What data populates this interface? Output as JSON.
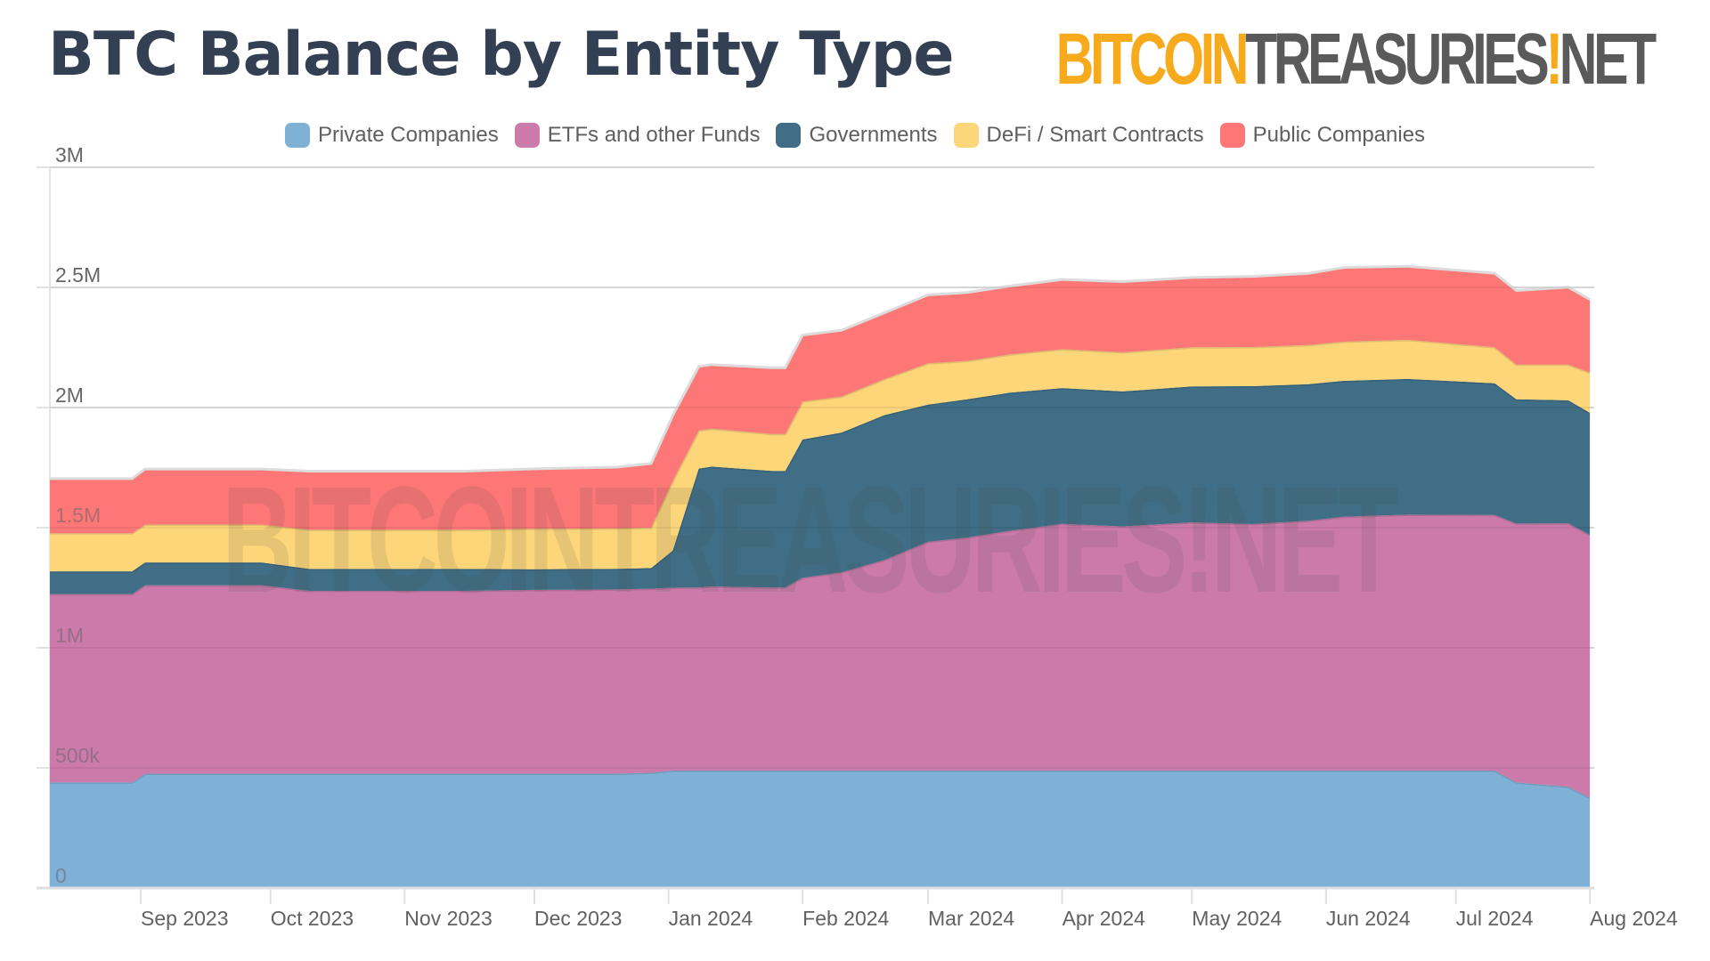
{
  "header": {
    "title": "BTC Balance by Entity Type",
    "brand_part1": "BITCOIN",
    "brand_part2": "TREASURIES",
    "brand_bang": "!",
    "brand_part3": "NET"
  },
  "watermark": "BITCOINTREASURIES!NET",
  "chart_data": {
    "type": "area",
    "stacked": true,
    "title": "BTC Balance by Entity Type",
    "xlabel": "",
    "ylabel": "",
    "ylim": [
      0,
      3000000
    ],
    "xlim": [
      "2023-08-11",
      "2024-08-02"
    ],
    "grid": true,
    "legend_position": "top",
    "yticks": [
      {
        "value": 0,
        "label": "0"
      },
      {
        "value": 500000,
        "label": "500k"
      },
      {
        "value": 1000000,
        "label": "1M"
      },
      {
        "value": 1500000,
        "label": "1.5M"
      },
      {
        "value": 2000000,
        "label": "2M"
      },
      {
        "value": 2500000,
        "label": "2.5M"
      },
      {
        "value": 3000000,
        "label": "3M"
      }
    ],
    "xticks": [
      {
        "date": "2023-09-01",
        "label": "Sep 2023"
      },
      {
        "date": "2023-10-01",
        "label": "Oct 2023"
      },
      {
        "date": "2023-11-01",
        "label": "Nov 2023"
      },
      {
        "date": "2023-12-01",
        "label": "Dec 2023"
      },
      {
        "date": "2024-01-01",
        "label": "Jan 2024"
      },
      {
        "date": "2024-02-01",
        "label": "Feb 2024"
      },
      {
        "date": "2024-03-01",
        "label": "Mar 2024"
      },
      {
        "date": "2024-04-01",
        "label": "Apr 2024"
      },
      {
        "date": "2024-05-01",
        "label": "May 2024"
      },
      {
        "date": "2024-06-01",
        "label": "Jun 2024"
      },
      {
        "date": "2024-07-01",
        "label": "Jul 2024"
      },
      {
        "date": "2024-08-01",
        "label": "Aug 2024"
      }
    ],
    "x": [
      "2023-08-11",
      "2023-08-30",
      "2023-09-02",
      "2023-09-29",
      "2023-10-10",
      "2023-11-15",
      "2023-12-01",
      "2023-12-20",
      "2023-12-28",
      "2024-01-02",
      "2024-01-08",
      "2024-01-11",
      "2024-01-25",
      "2024-01-28",
      "2024-02-01",
      "2024-02-10",
      "2024-02-20",
      "2024-03-01",
      "2024-03-10",
      "2024-03-20",
      "2024-04-01",
      "2024-04-15",
      "2024-05-01",
      "2024-05-15",
      "2024-05-28",
      "2024-06-05",
      "2024-06-20",
      "2024-07-10",
      "2024-07-15",
      "2024-07-27",
      "2024-08-01"
    ],
    "series": [
      {
        "name": "Private Companies",
        "color": "#7fb0d6",
        "values": [
          440000,
          440000,
          476000,
          476000,
          476000,
          476000,
          476000,
          476000,
          480000,
          489000,
          489000,
          489000,
          489000,
          489000,
          489000,
          489000,
          489000,
          489000,
          489000,
          489000,
          489000,
          489000,
          489000,
          489000,
          489000,
          489000,
          489000,
          489000,
          440000,
          422000,
          376000
        ]
      },
      {
        "name": "ETFs and other Funds",
        "color": "#cc7aaa",
        "values": [
          783000,
          783000,
          784000,
          784000,
          761000,
          761000,
          765000,
          767000,
          766000,
          761000,
          762000,
          766000,
          762000,
          762000,
          802000,
          825000,
          877000,
          952000,
          970000,
          998000,
          1027000,
          1016000,
          1033000,
          1026000,
          1040000,
          1056000,
          1065000,
          1064000,
          1077000,
          1096000,
          1094000
        ]
      },
      {
        "name": "Governments",
        "color": "#3f6e86",
        "values": [
          95000,
          95000,
          95000,
          95000,
          91000,
          91000,
          86000,
          86000,
          86000,
          155000,
          495000,
          499000,
          485000,
          485000,
          576000,
          582000,
          603000,
          571000,
          575000,
          575000,
          565000,
          562000,
          566000,
          574000,
          568000,
          566000,
          565000,
          548000,
          517000,
          512000,
          508000
        ]
      },
      {
        "name": "DeFi / Smart Contracts",
        "color": "#fcd679",
        "values": [
          159000,
          159000,
          158000,
          158000,
          163000,
          163000,
          168000,
          168000,
          168000,
          290000,
          158000,
          158000,
          154000,
          154000,
          158000,
          150000,
          150000,
          172000,
          160000,
          159000,
          162000,
          163000,
          163000,
          163000,
          163000,
          163000,
          163000,
          150000,
          145000,
          149000,
          168000
        ]
      },
      {
        "name": "Public Companies",
        "color": "#fe7777",
        "values": [
          227000,
          227000,
          231000,
          231000,
          244000,
          244000,
          250000,
          255000,
          267000,
          272000,
          267000,
          267000,
          276000,
          276000,
          277000,
          276000,
          276000,
          285000,
          285000,
          285000,
          290000,
          294000,
          290000,
          294000,
          298000,
          309000,
          306000,
          308000,
          308000,
          322000,
          304000
        ]
      }
    ]
  }
}
